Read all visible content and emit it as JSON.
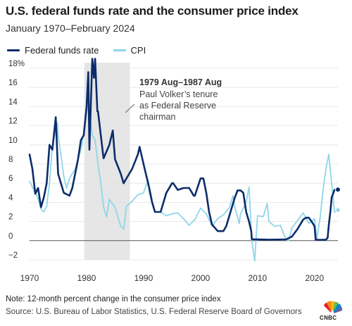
{
  "header": {
    "title": "U.S. federal funds rate and the consumer price index",
    "subtitle": "January 1970–February 2024"
  },
  "legend": [
    {
      "label": "Federal funds rate",
      "color": "#0d2c6b"
    },
    {
      "label": "CPI",
      "color": "#8fd6e8"
    }
  ],
  "annotation": {
    "heading": "1979 Aug–1987 Aug",
    "lines": [
      "Paul Volker’s tenure",
      "as Federal Reserve",
      "chairman"
    ]
  },
  "footer": {
    "note": "Note: 12-month percent change in the consumer price index",
    "source": "Source: U.S. Bureau of Labor Statistics, U.S. Federal Reserve Board of Governors"
  },
  "logo": {
    "text": "CNBC",
    "icon": "nbc-peacock-icon"
  },
  "chart_data": {
    "type": "line",
    "title": "U.S. federal funds rate and the consumer price index",
    "subtitle": "January 1970–February 2024",
    "xlabel": "",
    "ylabel": "",
    "xlim": [
      1970,
      2024.1
    ],
    "ylim": [
      -2,
      18
    ],
    "y_ticks": [
      -2,
      0,
      2,
      4,
      6,
      8,
      10,
      12,
      14,
      16,
      18
    ],
    "y_tick_labels": [
      "−2",
      "0",
      "2",
      "4",
      "6",
      "8",
      "10",
      "12",
      "14",
      "16",
      "18%"
    ],
    "x_ticks": [
      1970,
      1980,
      1990,
      2000,
      2010,
      2020
    ],
    "x_tick_labels": [
      "1970",
      "1980",
      "1990",
      "2000",
      "2010",
      "2020"
    ],
    "grid": "horizontal",
    "legend_position": "top-left",
    "shaded_region": {
      "x_start": 1979.6,
      "x_end": 1987.6,
      "color": "#e6e6e6"
    },
    "series": [
      {
        "name": "Federal funds rate",
        "color": "#0d2c6b",
        "x": [
          1970,
          1970.5,
          1971,
          1971.5,
          1972,
          1972.5,
          1973,
          1973.5,
          1974,
          1974.6,
          1975,
          1975.5,
          1976,
          1977,
          1977.5,
          1978,
          1978.5,
          1979,
          1979.5,
          1980,
          1980.3,
          1980.5,
          1980.9,
          1981,
          1981.3,
          1981.5,
          1981.9,
          1982,
          1982.5,
          1982.9,
          1983,
          1984,
          1984.6,
          1985,
          1986,
          1986.5,
          1987,
          1988,
          1989,
          1989.3,
          1990,
          1991,
          1991.5,
          1992,
          1993,
          1994,
          1995,
          1995.2,
          1996,
          1997,
          1998,
          1998.8,
          1999,
          2000,
          2000.5,
          2001,
          2001.5,
          2002,
          2003,
          2003.5,
          2004,
          2004.5,
          2005,
          2005.5,
          2006,
          2006.5,
          2007,
          2007.5,
          2008,
          2008.5,
          2008.9,
          2009,
          2012,
          2015,
          2015.9,
          2016,
          2017,
          2018,
          2018.5,
          2019,
          2019.7,
          2020,
          2020.2,
          2021,
          2022,
          2022.3,
          2022.5,
          2022.8,
          2023,
          2023.5,
          2024,
          2024.1
        ],
        "y": [
          9.0,
          7.5,
          4.9,
          5.5,
          3.5,
          4.5,
          6.0,
          10.0,
          9.5,
          12.9,
          7.0,
          6.0,
          5.0,
          4.7,
          5.5,
          7.0,
          8.5,
          10.5,
          11.0,
          14.0,
          17.6,
          9.5,
          17.0,
          19.0,
          17.0,
          19.0,
          13.5,
          13.5,
          11.0,
          9.0,
          8.6,
          10.0,
          11.5,
          8.5,
          7.0,
          6.0,
          6.5,
          7.5,
          9.0,
          9.8,
          8.0,
          5.5,
          4.0,
          3.0,
          3.0,
          5.0,
          6.0,
          6.0,
          5.3,
          5.5,
          5.5,
          4.7,
          4.7,
          6.5,
          6.5,
          5.0,
          3.0,
          1.7,
          1.0,
          1.0,
          1.0,
          1.5,
          2.5,
          3.5,
          4.5,
          5.25,
          5.25,
          5.0,
          3.0,
          2.0,
          1.0,
          0.15,
          0.1,
          0.13,
          0.4,
          0.4,
          1.2,
          2.2,
          2.4,
          2.4,
          1.8,
          1.5,
          0.1,
          0.08,
          0.1,
          0.3,
          1.6,
          3.2,
          4.5,
          5.3,
          5.33,
          5.33
        ]
      },
      {
        "name": "CPI",
        "color": "#8fd6e8",
        "x": [
          1970,
          1970.5,
          1971,
          1971.5,
          1972,
          1972.5,
          1973,
          1973.5,
          1974,
          1974.9,
          1975,
          1975.5,
          1976,
          1976.5,
          1977,
          1978,
          1979,
          1979.6,
          1980,
          1980.3,
          1980.8,
          1981,
          1981.5,
          1982,
          1982.5,
          1983,
          1983.5,
          1984,
          1985,
          1986,
          1986.5,
          1987,
          1988,
          1989,
          1990,
          1990.8,
          1991,
          1992,
          1993,
          1994,
          1995,
          1996,
          1997,
          1998,
          1999,
          2000,
          2001,
          2001.8,
          2002,
          2003,
          2004,
          2005,
          2005.7,
          2006,
          2006.8,
          2007,
          2008,
          2008.5,
          2009,
          2009.5,
          2010,
          2011,
          2011.7,
          2012,
          2013,
          2014,
          2015,
          2015.5,
          2016,
          2017,
          2018,
          2019,
          2020,
          2020.4,
          2021,
          2021.5,
          2022,
          2022.5,
          2023,
          2023.5,
          2024,
          2024.1
        ],
        "y": [
          6.2,
          5.6,
          5.0,
          4.4,
          3.3,
          3.0,
          3.6,
          6.0,
          10.0,
          12.3,
          11.0,
          9.0,
          6.7,
          5.5,
          6.5,
          7.5,
          9.5,
          11.5,
          13.5,
          14.7,
          12.0,
          11.0,
          10.5,
          8.0,
          6.0,
          3.5,
          2.5,
          4.3,
          3.5,
          1.5,
          1.2,
          3.6,
          4.1,
          4.8,
          5.0,
          6.3,
          5.0,
          3.0,
          3.0,
          2.6,
          2.8,
          2.9,
          2.3,
          1.6,
          2.2,
          3.4,
          2.8,
          1.8,
          1.5,
          2.3,
          2.7,
          3.4,
          4.7,
          3.5,
          1.8,
          2.8,
          4.0,
          5.6,
          0.0,
          -2.1,
          2.6,
          2.5,
          3.9,
          2.0,
          1.5,
          1.6,
          0.1,
          0.0,
          1.3,
          2.1,
          2.9,
          1.8,
          2.3,
          0.2,
          2.5,
          5.4,
          7.5,
          9.0,
          6.0,
          3.0,
          3.1,
          3.2
        ]
      }
    ]
  }
}
